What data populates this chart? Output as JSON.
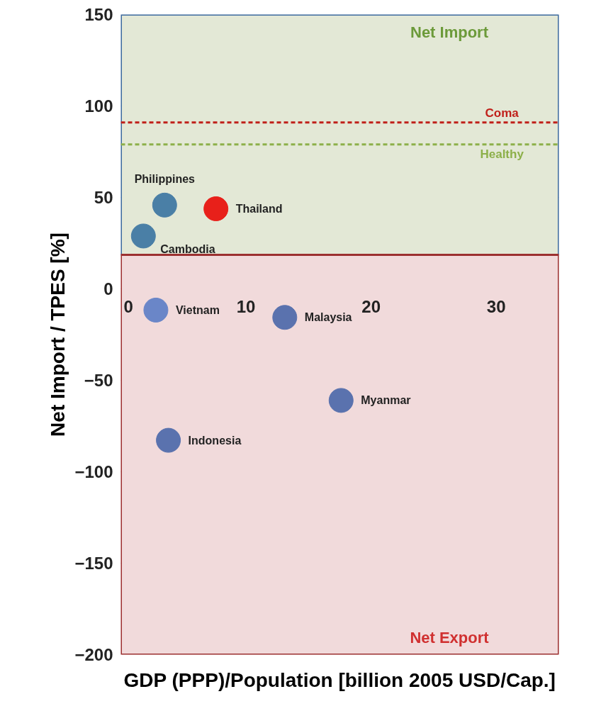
{
  "chart_data": {
    "type": "scatter",
    "xlabel": "GDP (PPP)/Population [billion 2005 USD/Cap.]",
    "ylabel": "Net Import / TPES [%]",
    "x": [
      3.5,
      7.6,
      1.8,
      2.8,
      13.1,
      17.6,
      3.8
    ],
    "values": [
      45.8,
      43.8,
      28.9,
      -11.6,
      -15.6,
      -61,
      -82.8
    ],
    "colors": [
      "#4a7fa6",
      "#e8201a",
      "#4a7fa6",
      "#6a86c8",
      "#5a72ae",
      "#5a72ae",
      "#5a72ae"
    ],
    "xlim": [
      0,
      35
    ],
    "ylim": [
      -200,
      150
    ],
    "xticks": [
      0,
      10,
      20,
      30
    ],
    "yticks": [
      -200,
      -150,
      -100,
      -50,
      0,
      50,
      100,
      150
    ],
    "grid": "y",
    "marker": "circle",
    "ref_lines": [
      {
        "axis": "y",
        "value": 91,
        "label": "Coma",
        "color": "#c0201a",
        "line_style": "dashed"
      },
      {
        "axis": "y",
        "value": 79,
        "label": "Healthy",
        "color": "#8db04a",
        "line_style": "dashed"
      }
    ],
    "bands": [
      {
        "axis": "y",
        "from": 18.6,
        "to": 150,
        "label": "Net Import",
        "color": "#e3e8d6"
      },
      {
        "axis": "y",
        "from": -200,
        "to": 18.6,
        "label": "Net Export",
        "color": "#f1dadb"
      }
    ],
    "annotations": [
      {
        "text": "Philippines",
        "x": 3.5,
        "y": 45.8
      },
      {
        "text": "Thailand",
        "x": 7.6,
        "y": 43.8
      },
      {
        "text": "Cambodia",
        "x": 1.8,
        "y": 28.9
      },
      {
        "text": "Vietnam",
        "x": 2.8,
        "y": -11.6
      },
      {
        "text": "Malaysia",
        "x": 13.1,
        "y": -15.6
      },
      {
        "text": "Myanmar",
        "x": 17.6,
        "y": -61
      },
      {
        "text": "Indonesia",
        "x": 3.8,
        "y": -82.8
      }
    ]
  }
}
